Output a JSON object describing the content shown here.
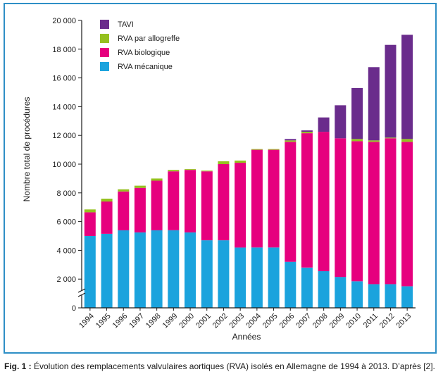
{
  "chart_data": {
    "type": "bar",
    "stacked": true,
    "categories": [
      "1994",
      "1995",
      "1996",
      "1997",
      "1998",
      "1999",
      "2000",
      "2001",
      "2002",
      "2003",
      "2004",
      "2005",
      "2006",
      "2007",
      "2008",
      "2009",
      "2010",
      "2011",
      "2012",
      "2013"
    ],
    "series": [
      {
        "name": "RVA mécanique",
        "color": "#1ba3dd",
        "values": [
          5000,
          5150,
          5400,
          5250,
          5400,
          5400,
          5250,
          4700,
          4700,
          4200,
          4200,
          4200,
          3200,
          2800,
          2550,
          2150,
          1850,
          1650,
          1650,
          1500
        ]
      },
      {
        "name": "RVA biologique",
        "color": "#e6007e",
        "values": [
          1650,
          2250,
          2700,
          3100,
          3450,
          4100,
          4350,
          4800,
          5300,
          5900,
          6800,
          6800,
          8350,
          9350,
          9700,
          9650,
          9750,
          9900,
          10150,
          10050
        ]
      },
      {
        "name": "RVA par allogreffe",
        "color": "#95c11f",
        "values": [
          200,
          200,
          150,
          150,
          150,
          100,
          50,
          50,
          200,
          150,
          50,
          50,
          100,
          100,
          0,
          0,
          150,
          100,
          50,
          200
        ]
      },
      {
        "name": "TAVI",
        "color": "#6a2c8c",
        "values": [
          0,
          0,
          0,
          0,
          0,
          0,
          0,
          0,
          0,
          0,
          0,
          0,
          100,
          100,
          1000,
          2300,
          3550,
          5100,
          6450,
          7250
        ]
      }
    ],
    "xlabel": "Années",
    "ylabel": "Nombre total de procédures",
    "ylim": [
      0,
      20000
    ],
    "yticks": [
      0,
      2000,
      4000,
      6000,
      8000,
      10000,
      12000,
      14000,
      16000,
      18000,
      20000
    ],
    "ytick_labels": [
      "0",
      "2 000",
      "4 000",
      "6 000",
      "8 000",
      "10 000",
      "12 000",
      "14 000",
      "16 000",
      "18 000",
      "20 000"
    ],
    "legend_order": [
      "TAVI",
      "RVA par allogreffe",
      "RVA biologique",
      "RVA mécanique"
    ],
    "legend_position": "top-left",
    "axis_break": true,
    "grid": false
  },
  "caption": {
    "label": "Fig. 1 :",
    "text": " Évolution des remplacements valvulaires aortiques (RVA) isolés en Allemagne de 1994 à 2013. D’après [2]."
  }
}
